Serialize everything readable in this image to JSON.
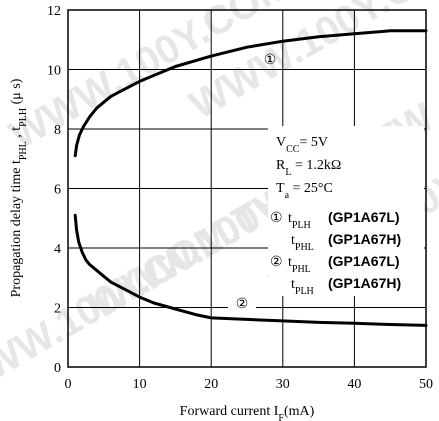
{
  "chart_data": {
    "type": "line",
    "xlabel": "Forward current I",
    "xlabel_sub": "F",
    "xlabel_unit": "(mA)",
    "ylabel_parts": [
      {
        "t": "Propagation delay time t",
        "sub": false
      },
      {
        "t": "PHL",
        "sub": true
      },
      {
        "t": " , t",
        "sub": false
      },
      {
        "t": "PLH",
        "sub": true
      },
      {
        "t": " (μ s)",
        "sub": false
      }
    ],
    "xlim": [
      0,
      50
    ],
    "ylim": [
      0,
      12
    ],
    "xticks": [
      0,
      10,
      20,
      30,
      40,
      50
    ],
    "yticks": [
      0,
      2,
      4,
      6,
      8,
      10,
      12
    ],
    "grid": true,
    "series": [
      {
        "marker": "①",
        "x": [
          1,
          1.2,
          1.6,
          2.2,
          3,
          4,
          5,
          6,
          8,
          10,
          12,
          15,
          20,
          25,
          30,
          35,
          40,
          45,
          50
        ],
        "values": [
          7.1,
          7.45,
          7.8,
          8.1,
          8.4,
          8.7,
          8.9,
          9.1,
          9.35,
          9.6,
          9.8,
          10.1,
          10.45,
          10.75,
          10.95,
          11.1,
          11.2,
          11.3,
          11.3
        ]
      },
      {
        "marker": "②",
        "x": [
          1,
          1.2,
          1.5,
          2,
          2.5,
          3,
          4,
          5,
          6,
          8,
          10,
          12,
          15,
          18,
          20,
          25,
          30,
          35,
          40,
          45,
          50
        ],
        "values": [
          5.1,
          4.6,
          4.2,
          3.85,
          3.6,
          3.45,
          3.25,
          3.05,
          2.85,
          2.6,
          2.35,
          2.15,
          1.95,
          1.75,
          1.65,
          1.6,
          1.55,
          1.5,
          1.47,
          1.43,
          1.4
        ]
      }
    ],
    "annotations": {
      "marker1": "①",
      "marker2": "②",
      "conditions": [
        {
          "parts": [
            {
              "t": "V",
              "sub": false
            },
            {
              "t": "CC",
              "sub": true
            },
            {
              "t": "= 5V",
              "sub": false
            }
          ]
        },
        {
          "parts": [
            {
              "t": "R",
              "sub": false
            },
            {
              "t": "L",
              "sub": true
            },
            {
              "t": " = 1.2kΩ",
              "sub": false
            }
          ]
        },
        {
          "parts": [
            {
              "t": "T",
              "sub": false
            },
            {
              "t": "a",
              "sub": true
            },
            {
              "t": " = 25°C",
              "sub": false
            }
          ]
        }
      ],
      "legend": [
        {
          "marker": "①",
          "t": "t",
          "sub": "PLH",
          "part": "(GP1A67L)"
        },
        {
          "marker": "",
          "t": "t",
          "sub": "PHL",
          "part": "(GP1A67H)"
        },
        {
          "marker": "②",
          "t": "t",
          "sub": "PHL",
          "part": "(GP1A67L)"
        },
        {
          "marker": "",
          "t": "t",
          "sub": "PLH",
          "part": "(GP1A67H)"
        }
      ]
    },
    "watermark": "WWW.100Y.COM.TW"
  }
}
